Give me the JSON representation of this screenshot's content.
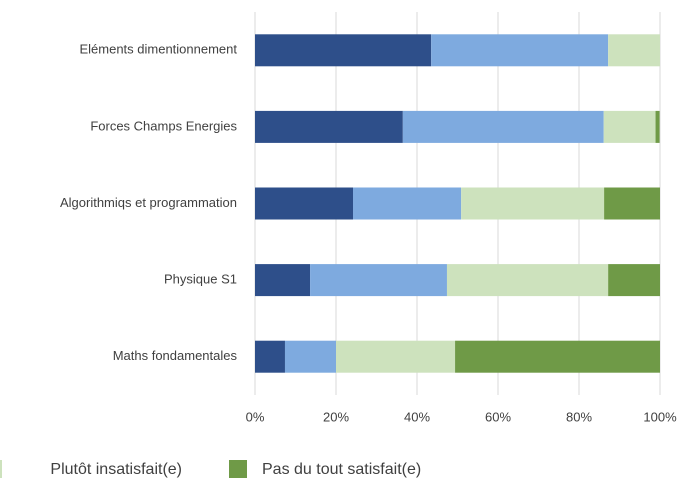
{
  "chart_data": {
    "type": "stacked_barh",
    "categories": [
      "Eléments dimentionnement",
      "Forces Champs Energies",
      "Algorithmiqs et programmation",
      "Physique S1",
      "Maths fondamentales"
    ],
    "series": [
      {
        "color": "#2e4f8a",
        "values": [
          43.5,
          36.5,
          24.2,
          13.6,
          7.4
        ]
      },
      {
        "color": "#7eaadf",
        "values": [
          43.7,
          49.6,
          26.7,
          33.8,
          12.6
        ]
      },
      {
        "name": "Plutôt insatisfait(e)",
        "color": "#cde2bd",
        "values": [
          12.8,
          12.8,
          35.3,
          39.8,
          29.4
        ]
      },
      {
        "name": "Pas du tout satisfait(e)",
        "color": "#6f9a47",
        "values": [
          0,
          1,
          13.8,
          12.8,
          50.6
        ]
      }
    ],
    "xlim": [
      0,
      100
    ],
    "xticks": [
      {
        "value": 0,
        "label": "0%"
      },
      {
        "value": 20,
        "label": "20%"
      },
      {
        "value": 40,
        "label": "40%"
      },
      {
        "value": 60,
        "label": "60%"
      },
      {
        "value": 80,
        "label": "80%"
      },
      {
        "value": 100,
        "label": "100%"
      }
    ],
    "grid": true
  }
}
